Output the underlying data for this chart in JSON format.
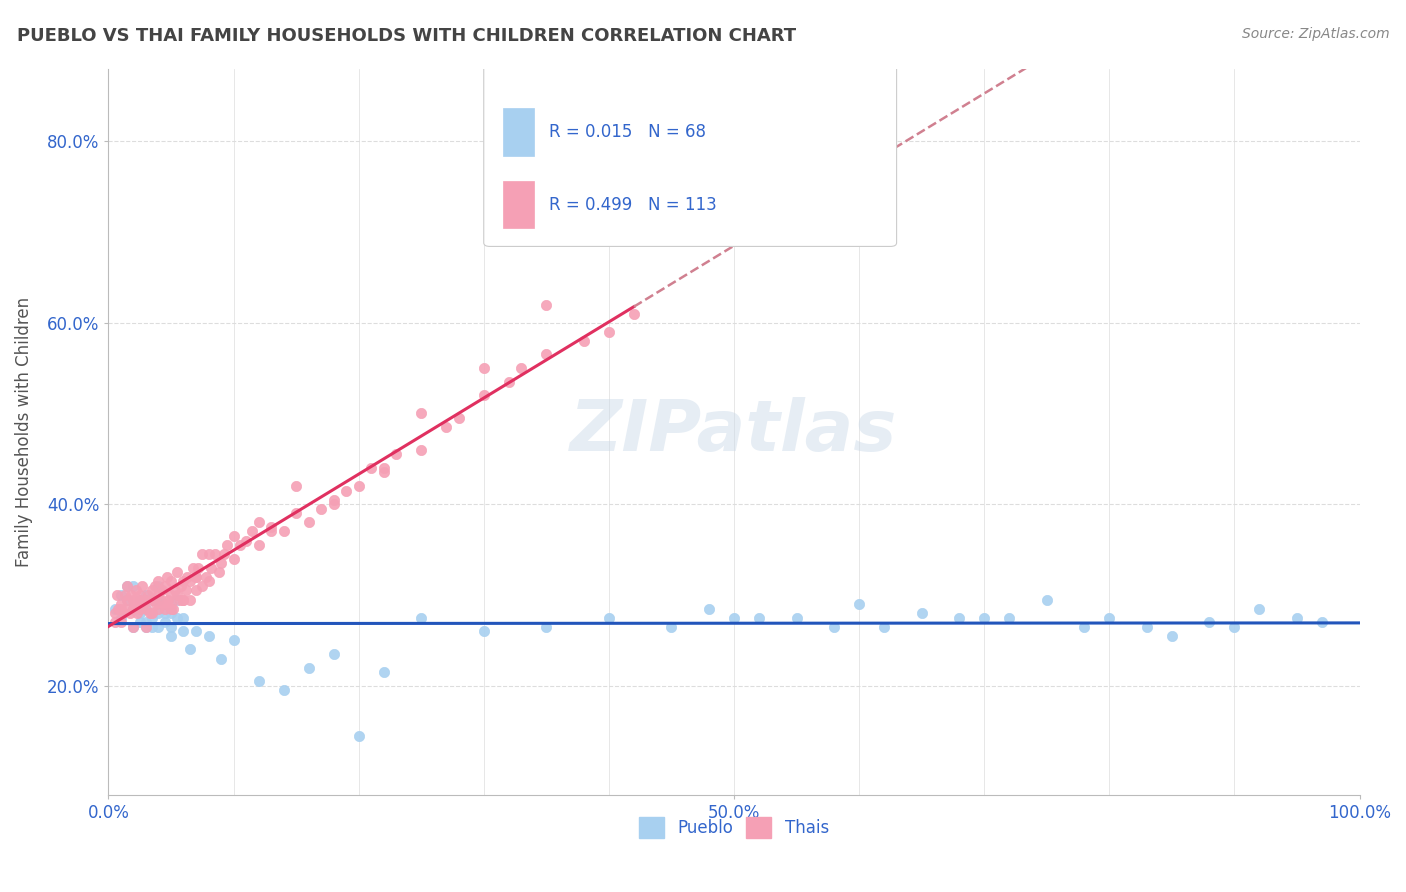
{
  "title": "PUEBLO VS THAI FAMILY HOUSEHOLDS WITH CHILDREN CORRELATION CHART",
  "source": "Source: ZipAtlas.com",
  "ylabel_label": "Family Households with Children",
  "xlim": [
    0.0,
    1.0
  ],
  "ylim": [
    0.08,
    0.88
  ],
  "yticks": [
    0.2,
    0.4,
    0.6,
    0.8
  ],
  "ytick_labels": [
    "20.0%",
    "40.0%",
    "60.0%",
    "80.0%"
  ],
  "xtick_positions": [
    0.0,
    0.5,
    1.0
  ],
  "xtick_labels": [
    "0.0%",
    "50.0%",
    "100.0%"
  ],
  "pueblo_R": 0.015,
  "pueblo_N": 68,
  "thai_R": 0.499,
  "thai_N": 113,
  "pueblo_color": "#A8D0F0",
  "thai_color": "#F5A0B5",
  "pueblo_line_color": "#2255BB",
  "thai_line_color": "#E03060",
  "thai_line_dashed_color": "#D08090",
  "legend_text_color": "#3366CC",
  "watermark_color": "#C8D8E8",
  "background_color": "#FFFFFF",
  "grid_color": "#DDDDDD",
  "title_color": "#444444",
  "axis_label_color": "#555555",
  "tick_color": "#3366CC",
  "pueblo_scatter_x": [
    0.005,
    0.01,
    0.01,
    0.015,
    0.015,
    0.02,
    0.02,
    0.02,
    0.025,
    0.025,
    0.025,
    0.03,
    0.03,
    0.03,
    0.03,
    0.035,
    0.035,
    0.035,
    0.04,
    0.04,
    0.04,
    0.04,
    0.045,
    0.045,
    0.05,
    0.05,
    0.05,
    0.055,
    0.055,
    0.06,
    0.06,
    0.065,
    0.07,
    0.08,
    0.09,
    0.1,
    0.12,
    0.14,
    0.16,
    0.18,
    0.2,
    0.22,
    0.25,
    0.3,
    0.35,
    0.4,
    0.45,
    0.48,
    0.5,
    0.52,
    0.55,
    0.58,
    0.6,
    0.62,
    0.65,
    0.68,
    0.7,
    0.72,
    0.75,
    0.78,
    0.8,
    0.83,
    0.85,
    0.88,
    0.9,
    0.92,
    0.95,
    0.97
  ],
  "pueblo_scatter_y": [
    0.285,
    0.3,
    0.275,
    0.295,
    0.31,
    0.285,
    0.265,
    0.31,
    0.28,
    0.295,
    0.27,
    0.285,
    0.265,
    0.3,
    0.27,
    0.275,
    0.295,
    0.265,
    0.28,
    0.265,
    0.295,
    0.31,
    0.27,
    0.28,
    0.265,
    0.28,
    0.255,
    0.275,
    0.295,
    0.26,
    0.275,
    0.24,
    0.26,
    0.255,
    0.23,
    0.25,
    0.205,
    0.195,
    0.22,
    0.235,
    0.145,
    0.215,
    0.275,
    0.26,
    0.265,
    0.275,
    0.265,
    0.285,
    0.275,
    0.275,
    0.275,
    0.265,
    0.29,
    0.265,
    0.28,
    0.275,
    0.275,
    0.275,
    0.295,
    0.265,
    0.275,
    0.265,
    0.255,
    0.27,
    0.265,
    0.285,
    0.275,
    0.27
  ],
  "thai_scatter_x": [
    0.005,
    0.005,
    0.007,
    0.008,
    0.01,
    0.01,
    0.01,
    0.012,
    0.013,
    0.015,
    0.015,
    0.015,
    0.017,
    0.018,
    0.02,
    0.02,
    0.02,
    0.022,
    0.022,
    0.023,
    0.025,
    0.025,
    0.025,
    0.027,
    0.028,
    0.03,
    0.03,
    0.03,
    0.032,
    0.033,
    0.035,
    0.035,
    0.035,
    0.037,
    0.038,
    0.04,
    0.04,
    0.04,
    0.042,
    0.043,
    0.045,
    0.045,
    0.045,
    0.047,
    0.048,
    0.05,
    0.05,
    0.05,
    0.052,
    0.053,
    0.055,
    0.055,
    0.057,
    0.058,
    0.06,
    0.06,
    0.062,
    0.063,
    0.065,
    0.065,
    0.068,
    0.07,
    0.07,
    0.072,
    0.075,
    0.075,
    0.078,
    0.08,
    0.082,
    0.085,
    0.088,
    0.09,
    0.092,
    0.095,
    0.1,
    0.105,
    0.11,
    0.115,
    0.12,
    0.13,
    0.14,
    0.15,
    0.16,
    0.17,
    0.18,
    0.19,
    0.2,
    0.21,
    0.22,
    0.23,
    0.25,
    0.27,
    0.28,
    0.3,
    0.32,
    0.33,
    0.35,
    0.38,
    0.4,
    0.42,
    0.22,
    0.25,
    0.3,
    0.15,
    0.12,
    0.08,
    0.35,
    0.1,
    0.05,
    0.07,
    0.18,
    0.13,
    0.06
  ],
  "thai_scatter_y": [
    0.28,
    0.27,
    0.3,
    0.285,
    0.27,
    0.285,
    0.29,
    0.28,
    0.3,
    0.285,
    0.295,
    0.31,
    0.28,
    0.3,
    0.285,
    0.295,
    0.265,
    0.29,
    0.305,
    0.28,
    0.285,
    0.295,
    0.3,
    0.31,
    0.29,
    0.285,
    0.295,
    0.265,
    0.3,
    0.28,
    0.295,
    0.305,
    0.28,
    0.31,
    0.29,
    0.3,
    0.285,
    0.315,
    0.295,
    0.305,
    0.29,
    0.31,
    0.285,
    0.32,
    0.295,
    0.29,
    0.3,
    0.315,
    0.285,
    0.305,
    0.3,
    0.325,
    0.295,
    0.31,
    0.315,
    0.295,
    0.305,
    0.32,
    0.295,
    0.315,
    0.33,
    0.305,
    0.32,
    0.33,
    0.31,
    0.345,
    0.32,
    0.315,
    0.33,
    0.345,
    0.325,
    0.335,
    0.345,
    0.355,
    0.34,
    0.355,
    0.36,
    0.37,
    0.355,
    0.375,
    0.37,
    0.39,
    0.38,
    0.395,
    0.4,
    0.415,
    0.42,
    0.44,
    0.435,
    0.455,
    0.46,
    0.485,
    0.495,
    0.52,
    0.535,
    0.55,
    0.565,
    0.58,
    0.59,
    0.61,
    0.44,
    0.5,
    0.55,
    0.42,
    0.38,
    0.345,
    0.62,
    0.365,
    0.285,
    0.32,
    0.405,
    0.37,
    0.295
  ]
}
